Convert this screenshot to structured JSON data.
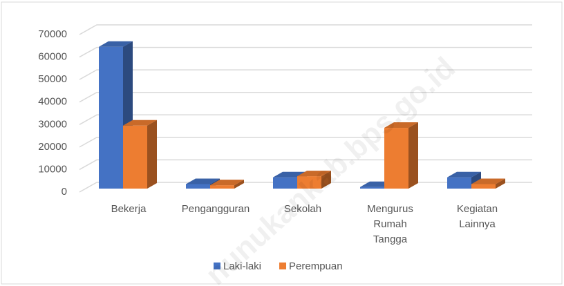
{
  "chart_data": {
    "type": "bar3d",
    "categories": [
      "Bekerja",
      "Pengangguran",
      "Sekolah",
      "Mengurus Rumah Tangga",
      "Kegiatan Lainnya"
    ],
    "series": [
      {
        "name": "Laki-laki",
        "color": "#4472c4",
        "values": [
          63000,
          2000,
          5000,
          700,
          5000
        ]
      },
      {
        "name": "Perempuan",
        "color": "#ed7d31",
        "values": [
          28000,
          1500,
          5500,
          27000,
          2000
        ]
      }
    ],
    "ylim": [
      0,
      70000
    ],
    "yticks": [
      0,
      10000,
      20000,
      30000,
      40000,
      50000,
      60000,
      70000
    ],
    "grid": true,
    "legend": "bottom",
    "watermark": "nunukankab.bps.go.id"
  }
}
